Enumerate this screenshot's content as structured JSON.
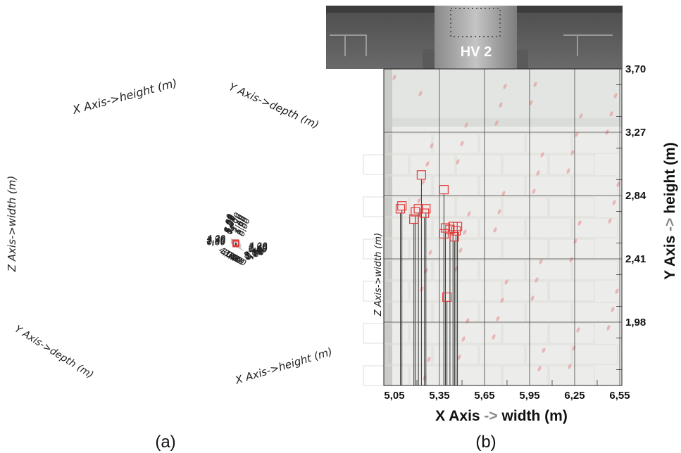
{
  "chart_data": [
    {
      "type": "scatter",
      "caption": "(a)",
      "projection": "3d",
      "x_axis": {
        "label": "X Axis->height (m)",
        "ticks": [
          "0,00",
          "1,76",
          "3,52",
          "5,28",
          "7,04",
          "8,80"
        ]
      },
      "y_axis": {
        "label": "Y Axis->depth (m)",
        "ticks": [
          "0,00",
          "0,80",
          "1,60",
          "2,40",
          "3,20",
          "4,00"
        ]
      },
      "z_axis": {
        "label": "Z Axis->width (m)",
        "ticks": [
          "0,80",
          "1,60",
          "2,40",
          "3,20",
          "4,00"
        ]
      },
      "marker": "square-outline",
      "marker_color": "#e23a3a",
      "stem_color": "#333333",
      "grid": true,
      "points": [
        {
          "x": 5.28,
          "y": 2.4,
          "z": 3.0
        },
        {
          "x": 5.04,
          "y": 2.3,
          "z": 2.55
        },
        {
          "x": 5.2,
          "y": 2.5,
          "z": 2.7
        },
        {
          "x": 5.35,
          "y": 2.42,
          "z": 2.72
        },
        {
          "x": 5.45,
          "y": 2.38,
          "z": 2.7
        },
        {
          "x": 5.5,
          "y": 2.35,
          "z": 2.68
        },
        {
          "x": 5.55,
          "y": 2.45,
          "z": 2.65
        },
        {
          "x": 5.6,
          "y": 2.4,
          "z": 2.75
        },
        {
          "x": 5.7,
          "y": 2.3,
          "z": 2.7
        },
        {
          "x": 5.75,
          "y": 2.35,
          "z": 2.66
        },
        {
          "x": 5.8,
          "y": 2.4,
          "z": 2.62
        },
        {
          "x": 5.48,
          "y": 2.4,
          "z": 2.3
        },
        {
          "x": 5.62,
          "y": 2.45,
          "z": 2.55
        },
        {
          "x": 5.9,
          "y": 2.4,
          "z": 1.62
        }
      ]
    },
    {
      "type": "scatter",
      "caption": "(b)",
      "photo_label": "HV 2",
      "xlabel": {
        "prefix": "X Axis",
        "arrow": "->",
        "suffix": "width (m)"
      },
      "ylabel": {
        "prefix": "Y Axis",
        "arrow": "->",
        "suffix": "height (m)"
      },
      "zlabel": "Z Axis->width (m)",
      "xlim": [
        5.05,
        6.55
      ],
      "ylim": [
        1.55,
        3.7
      ],
      "x_ticks": [
        "5,05",
        "5,35",
        "5,65",
        "5,95",
        "6,25",
        "6,55"
      ],
      "x_tick_values": [
        5.05,
        5.35,
        5.65,
        5.95,
        6.25,
        6.55
      ],
      "y_ticks": [
        "1,98",
        "2,41",
        "2,84",
        "3,27",
        "3,70"
      ],
      "y_tick_values": [
        1.98,
        2.41,
        2.84,
        3.27,
        3.7
      ],
      "grid": true,
      "marker": "square-outline",
      "marker_color": "#e23a3a",
      "stem_color": "#333333",
      "accent_colors": {
        "label_arrow": "#888888"
      },
      "points": [
        {
          "x": 5.09,
          "y": 2.75
        },
        {
          "x": 5.1,
          "y": 2.77
        },
        {
          "x": 5.18,
          "y": 2.68
        },
        {
          "x": 5.19,
          "y": 2.73
        },
        {
          "x": 5.21,
          "y": 2.75
        },
        {
          "x": 5.23,
          "y": 2.98
        },
        {
          "x": 5.25,
          "y": 2.72
        },
        {
          "x": 5.26,
          "y": 2.75
        },
        {
          "x": 5.38,
          "y": 2.88
        },
        {
          "x": 5.38,
          "y": 2.58
        },
        {
          "x": 5.39,
          "y": 2.62
        },
        {
          "x": 5.4,
          "y": 2.15
        },
        {
          "x": 5.42,
          "y": 2.61
        },
        {
          "x": 5.44,
          "y": 2.63
        },
        {
          "x": 5.45,
          "y": 2.56
        },
        {
          "x": 5.46,
          "y": 2.6
        },
        {
          "x": 5.47,
          "y": 2.63
        }
      ]
    }
  ]
}
